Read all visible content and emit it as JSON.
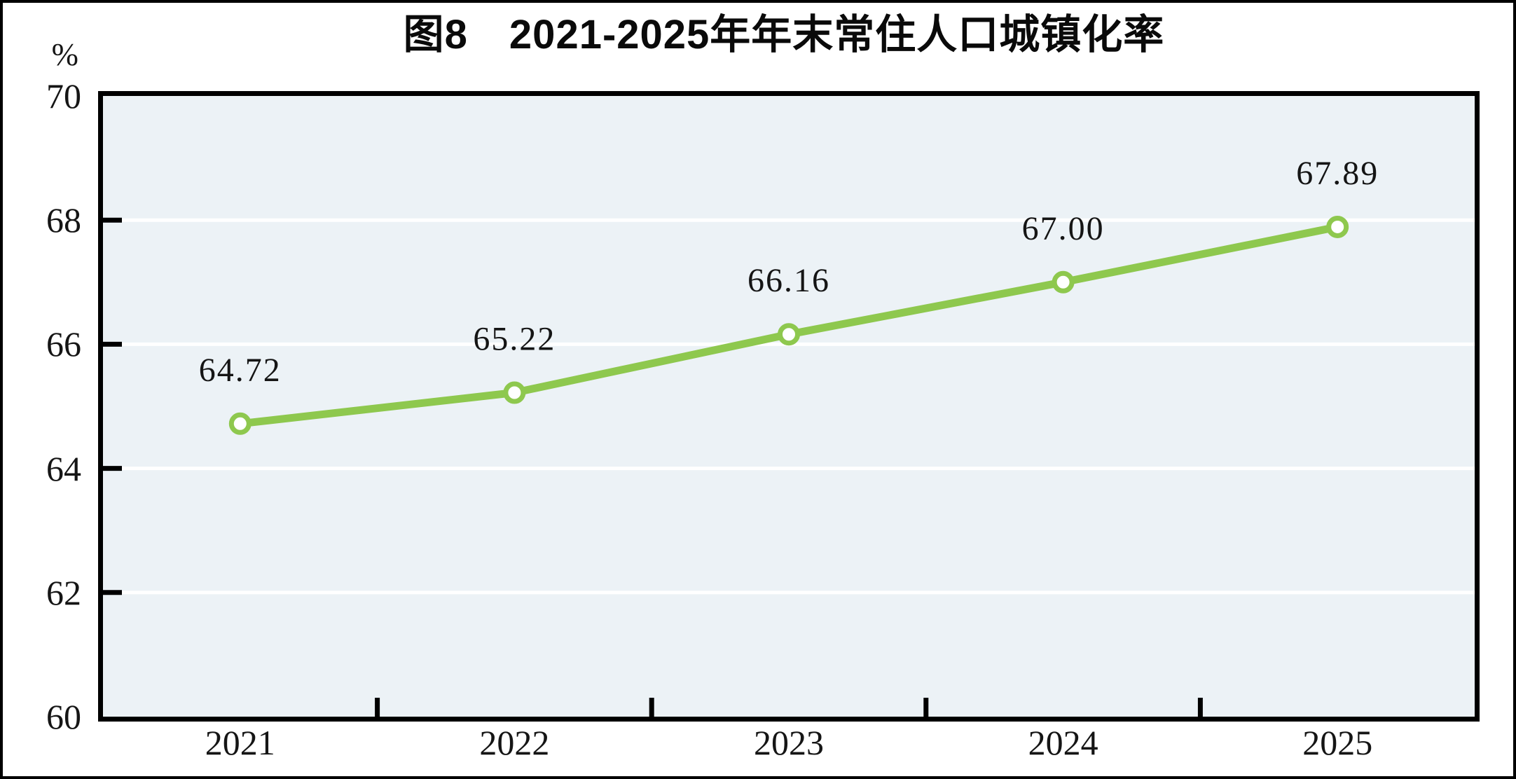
{
  "figure": {
    "title": "图8　2021-2025年年末常住人口城镇化率",
    "y_unit_label": "%"
  },
  "chart_data": {
    "type": "line",
    "title": "图8　2021-2025年年末常住人口城镇化率",
    "categories": [
      "2021",
      "2022",
      "2023",
      "2024",
      "2025"
    ],
    "series": [
      {
        "name": "年末常住人口城镇化率",
        "values": [
          64.72,
          65.22,
          66.16,
          67.0,
          67.89
        ]
      }
    ],
    "point_labels": [
      "64.72",
      "65.22",
      "66.16",
      "67.00",
      "67.89"
    ],
    "xlabel": "",
    "ylabel": "%",
    "ylim": [
      60,
      70
    ],
    "yticks": [
      60,
      62,
      64,
      66,
      68,
      70
    ],
    "grid": true,
    "legend": false,
    "layout_hints": {
      "gridline_style": "white horizontal lines on light blue plot background",
      "ticks": "inside ticks; x ticks at category boundaries",
      "marker": "open circle"
    },
    "colors": {
      "line": "#8ec84e",
      "marker_fill": "#ffffff",
      "plot_bg": "#ecf2f6",
      "gridline": "#ffffff",
      "axis": "#000000",
      "text": "#151515"
    }
  }
}
